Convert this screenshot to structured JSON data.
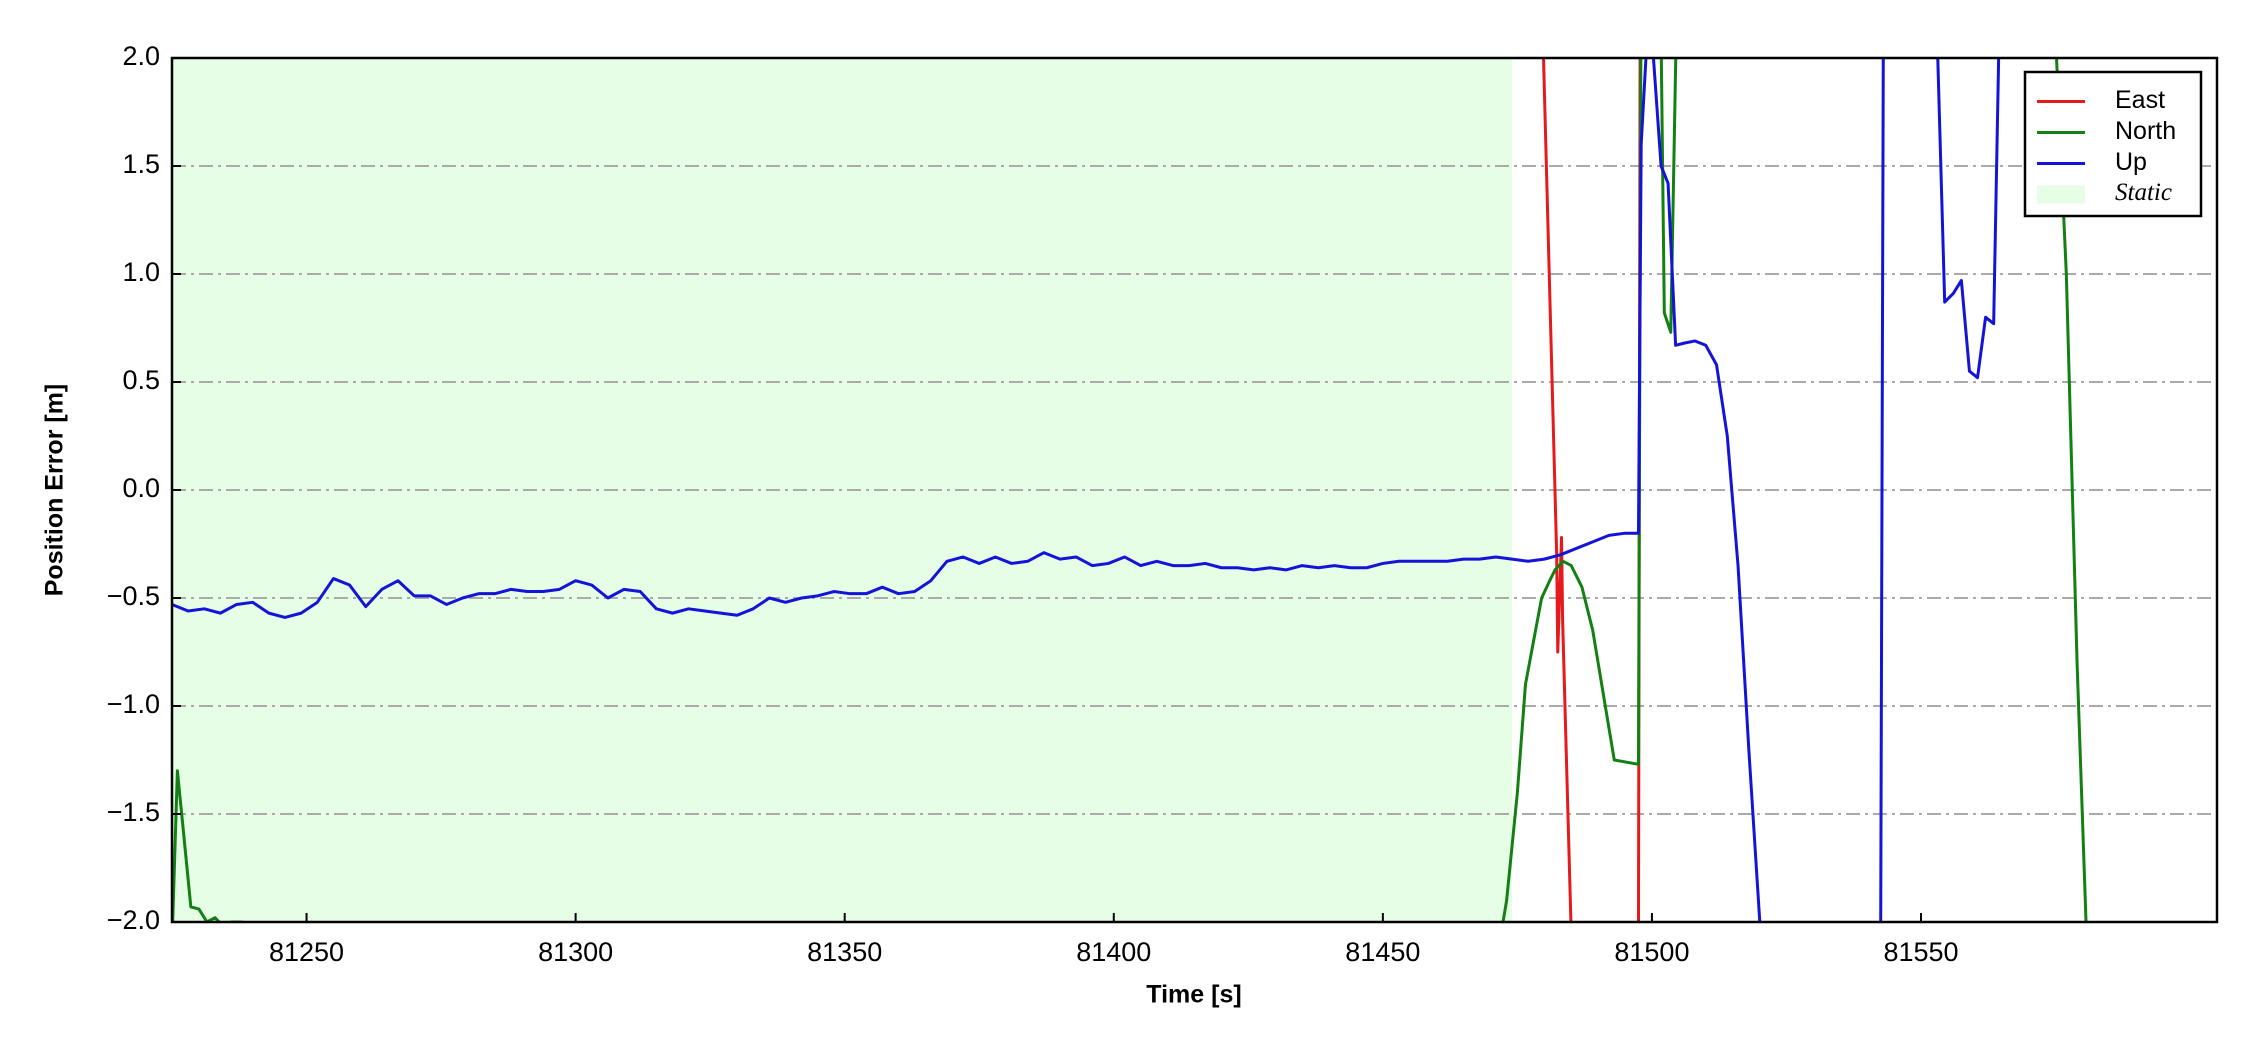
{
  "chart_data": {
    "type": "line",
    "xlabel": "Time [s]",
    "ylabel": "Position Error [m]",
    "xlim": [
      81225,
      81605
    ],
    "ylim": [
      -2,
      2
    ],
    "xticks": [
      81250,
      81300,
      81350,
      81400,
      81450,
      81500,
      81550
    ],
    "yticks": [
      {
        "value": -2,
        "label": "−2.0"
      },
      {
        "value": -1.5,
        "label": "−1.5"
      },
      {
        "value": -1,
        "label": "−1.0"
      },
      {
        "value": -0.5,
        "label": "−0.5"
      },
      {
        "value": 0,
        "label": "0.0"
      },
      {
        "value": 0.5,
        "label": "0.5"
      },
      {
        "value": 1,
        "label": "1.0"
      },
      {
        "value": 1.5,
        "label": "1.5"
      },
      {
        "value": 2,
        "label": "2.0"
      }
    ],
    "grid": true,
    "legend": "upper right",
    "static_region": {
      "name": "Static",
      "color": "#e6fde6",
      "x": [
        81225,
        81474
      ]
    },
    "series": [
      {
        "name": "East",
        "color": "#e41a1c",
        "x": [
          81479.8,
          81482.3,
          81482.5,
          81483.2,
          81483.4,
          81485,
          81490,
          81497.5,
          81497.8
        ],
        "values": [
          2.05,
          -0.3,
          -0.75,
          -0.22,
          -0.6,
          -2.05,
          null,
          -2.05,
          2.05
        ]
      },
      {
        "name": "North",
        "color": "#138013",
        "x": [
          81225,
          81226,
          81227,
          81228.5,
          81230,
          81231.5,
          81233,
          81234.5,
          81236,
          81238,
          81240,
          81241,
          81300,
          81472,
          81473,
          81475,
          81476.5,
          81478,
          81479.5,
          81481,
          81482,
          81483.5,
          81485,
          81487,
          81489,
          81491,
          81493,
          81497.5,
          81498,
          81501.7,
          81502.3,
          81503.5,
          81504.5,
          81540,
          81575,
          81577,
          81579,
          81580.8
        ],
        "values": [
          -2.1,
          -1.3,
          -1.55,
          -1.93,
          -1.94,
          -2.0,
          -1.98,
          -2.02,
          -2.0,
          -2.0,
          -2.02,
          -2.1,
          null,
          -2.05,
          -1.9,
          -1.4,
          -0.9,
          -0.7,
          -0.5,
          -0.42,
          -0.37,
          -0.33,
          -0.35,
          -0.45,
          -0.65,
          -0.95,
          -1.25,
          -1.27,
          2.5,
          2.1,
          0.82,
          0.73,
          2.1,
          null,
          2.1,
          1.0,
          -0.8,
          -2.1
        ]
      },
      {
        "name": "Up",
        "color": "#1414d8",
        "x": [
          81225,
          81228,
          81231,
          81234,
          81237,
          81240,
          81243,
          81246,
          81249,
          81252,
          81255,
          81258,
          81261,
          81264,
          81267,
          81270,
          81273,
          81276,
          81279,
          81282,
          81285,
          81288,
          81291,
          81294,
          81297,
          81300,
          81303,
          81306,
          81309,
          81312,
          81315,
          81318,
          81321,
          81324,
          81327,
          81330,
          81333,
          81336,
          81339,
          81342,
          81345,
          81348,
          81351,
          81354,
          81357,
          81360,
          81363,
          81366,
          81369,
          81372,
          81375,
          81378,
          81381,
          81384,
          81387,
          81390,
          81393,
          81396,
          81399,
          81402,
          81405,
          81408,
          81411,
          81414,
          81417,
          81420,
          81423,
          81426,
          81429,
          81432,
          81435,
          81438,
          81441,
          81444,
          81447,
          81450,
          81453,
          81456,
          81459,
          81462,
          81465,
          81468,
          81471,
          81474,
          81477,
          81480,
          81483,
          81486,
          81489,
          81492,
          81495,
          81497.5,
          81498,
          81499,
          81500,
          81501.7,
          81503,
          81504.4,
          81506,
          81508,
          81510,
          81512,
          81514,
          81516,
          81518,
          81520.3,
          81530,
          81542.5,
          81543,
          81553,
          81554.4,
          81556,
          81557.5,
          81559,
          81560.5,
          81562,
          81563.5,
          81564.5
        ],
        "values": [
          -0.53,
          -0.56,
          -0.55,
          -0.57,
          -0.53,
          -0.52,
          -0.57,
          -0.59,
          -0.57,
          -0.52,
          -0.41,
          -0.44,
          -0.54,
          -0.46,
          -0.42,
          -0.49,
          -0.49,
          -0.53,
          -0.5,
          -0.48,
          -0.48,
          -0.46,
          -0.47,
          -0.47,
          -0.46,
          -0.42,
          -0.44,
          -0.5,
          -0.46,
          -0.47,
          -0.55,
          -0.57,
          -0.55,
          -0.56,
          -0.57,
          -0.58,
          -0.55,
          -0.5,
          -0.52,
          -0.5,
          -0.49,
          -0.47,
          -0.48,
          -0.48,
          -0.45,
          -0.48,
          -0.47,
          -0.42,
          -0.33,
          -0.31,
          -0.34,
          -0.31,
          -0.34,
          -0.33,
          -0.29,
          -0.32,
          -0.31,
          -0.35,
          -0.34,
          -0.31,
          -0.35,
          -0.33,
          -0.35,
          -0.35,
          -0.34,
          -0.36,
          -0.36,
          -0.37,
          -0.36,
          -0.37,
          -0.35,
          -0.36,
          -0.35,
          -0.36,
          -0.36,
          -0.34,
          -0.33,
          -0.33,
          -0.33,
          -0.33,
          -0.32,
          -0.32,
          -0.31,
          -0.32,
          -0.33,
          -0.32,
          -0.3,
          -0.27,
          -0.24,
          -0.21,
          -0.2,
          -0.2,
          1.6,
          2.05,
          2.1,
          1.5,
          1.42,
          0.67,
          0.68,
          0.69,
          0.67,
          0.58,
          0.25,
          -0.35,
          -1.2,
          -2.1,
          null,
          -2.1,
          2.1,
          2.1,
          0.87,
          0.91,
          0.97,
          0.55,
          0.52,
          0.8,
          0.77,
          2.1
        ]
      }
    ]
  }
}
